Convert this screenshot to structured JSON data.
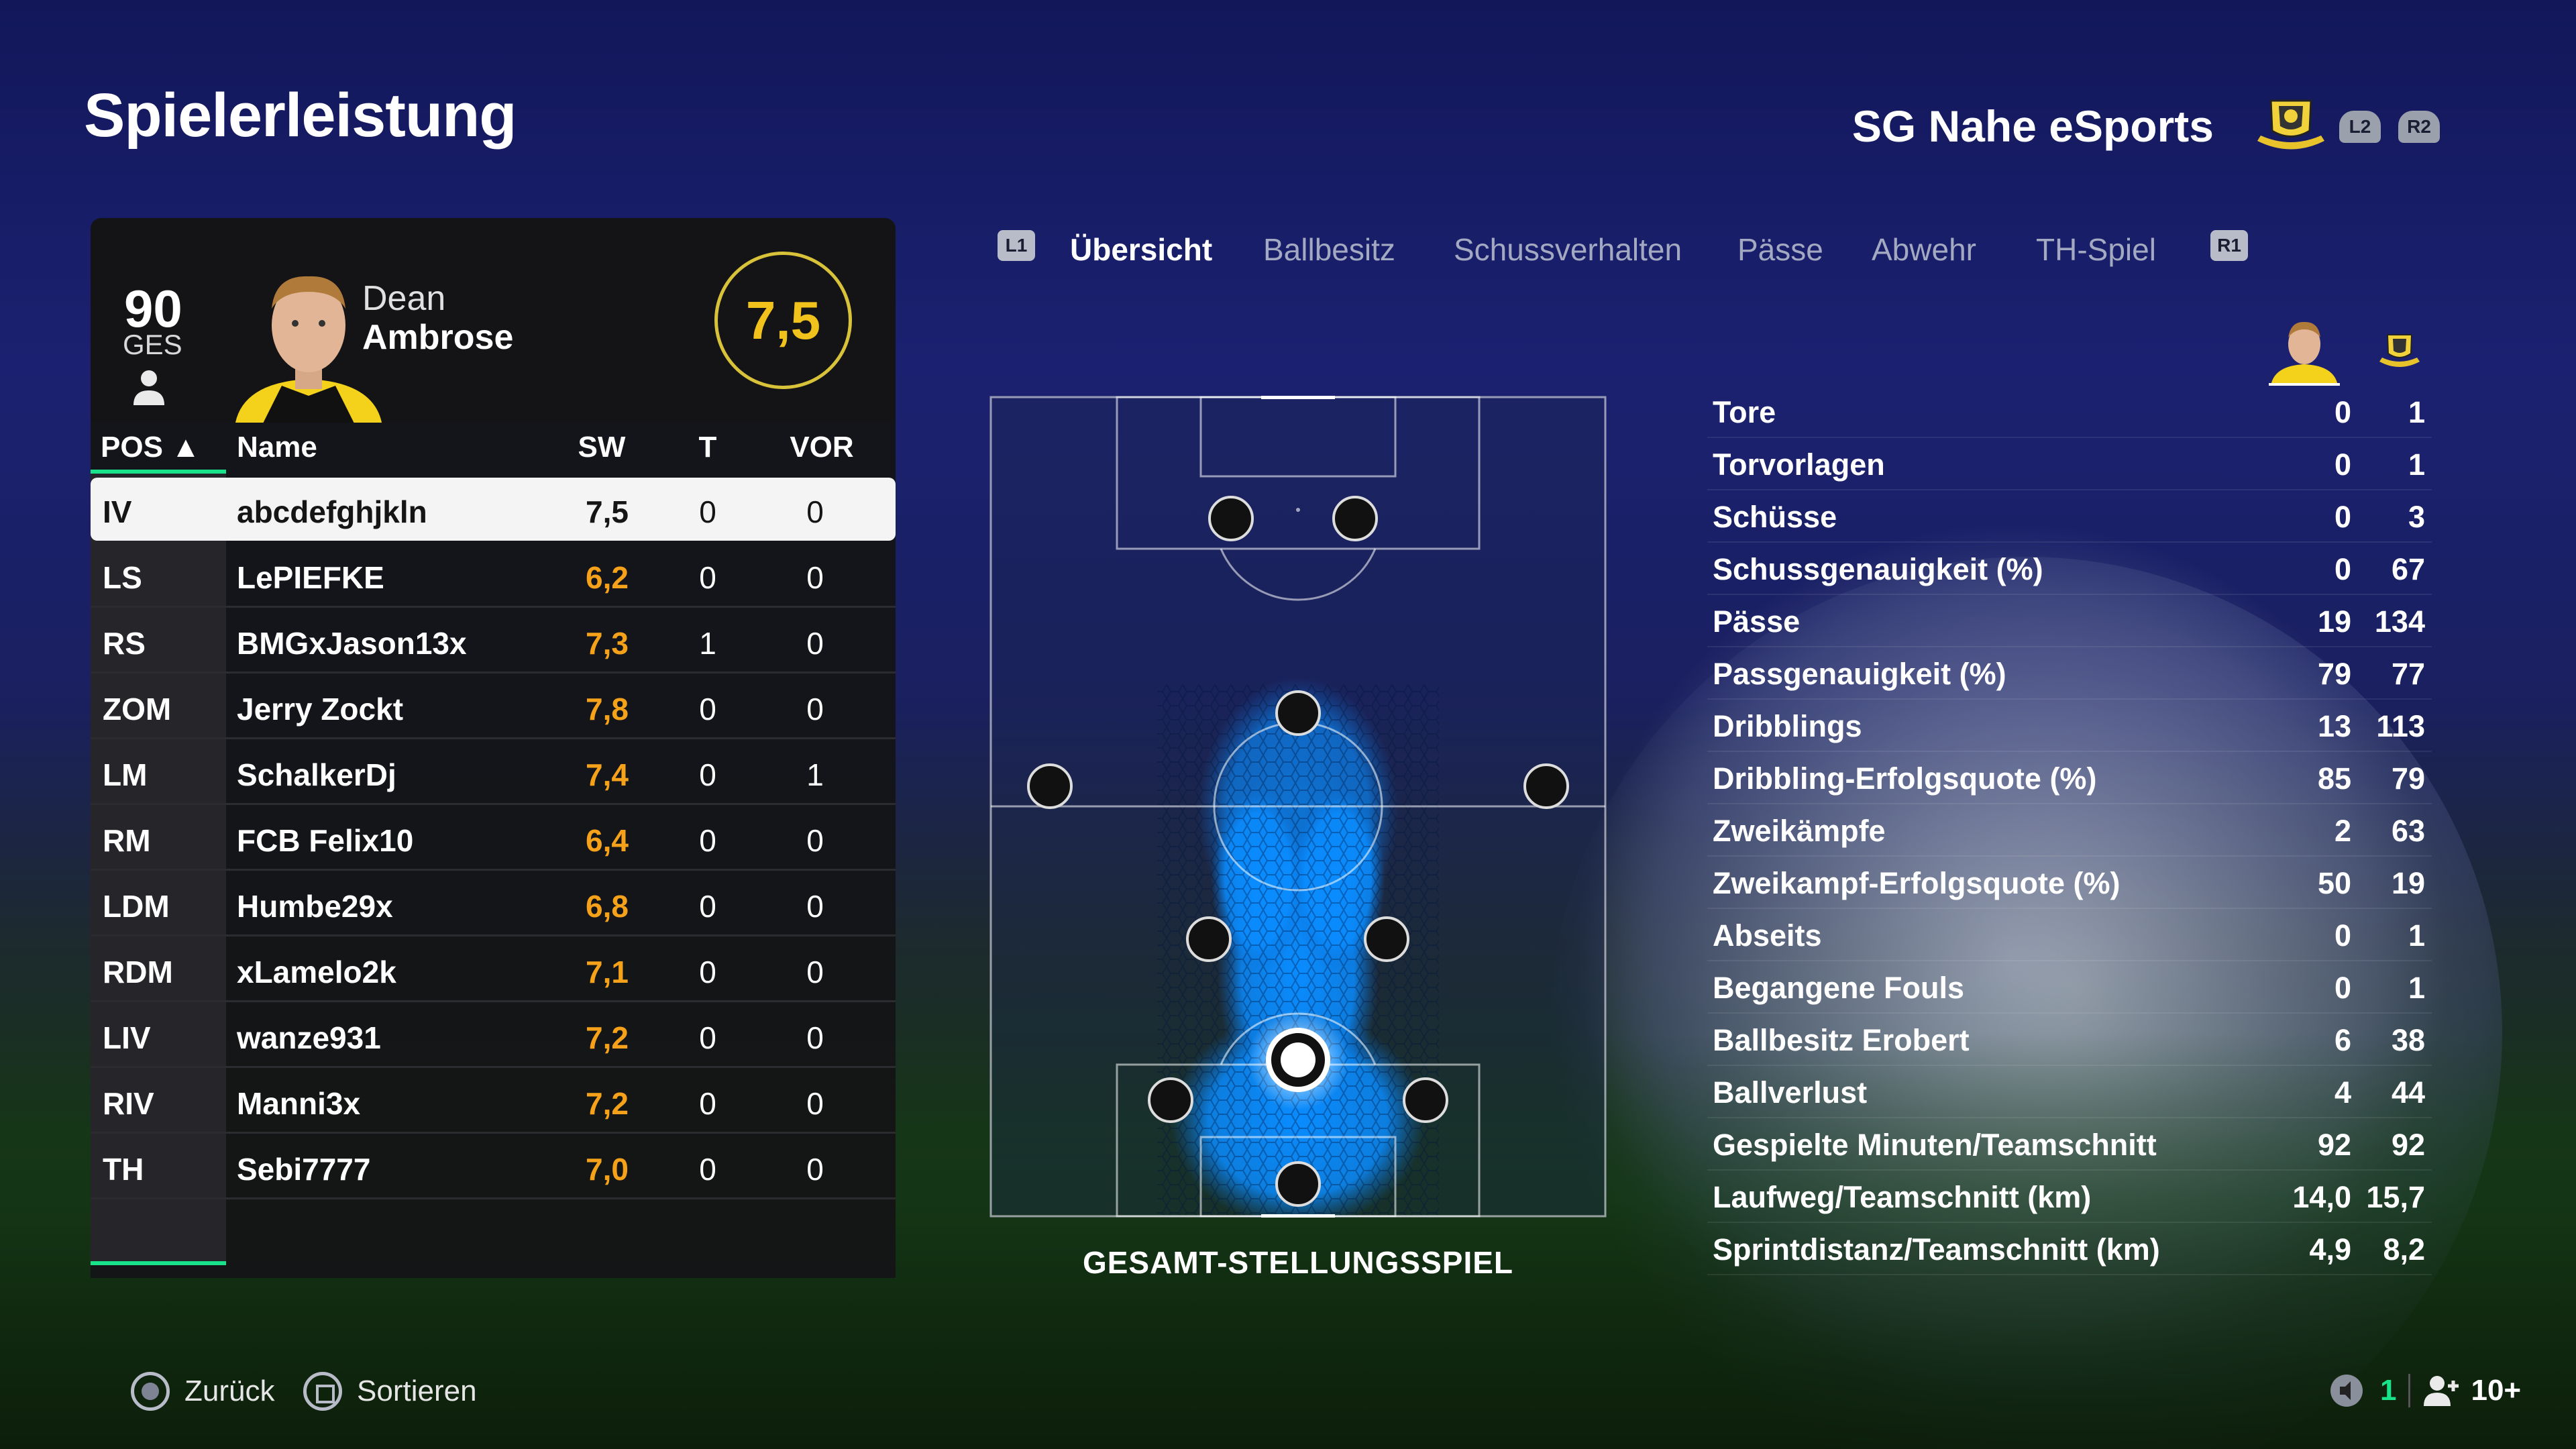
{
  "header": {
    "title": "Spielerleistung",
    "club": "SG Nahe eSports",
    "l2": "L2",
    "r2": "R2"
  },
  "player": {
    "overall": "90",
    "overall_label": "GES",
    "first_name": "Dean",
    "last_name": "Ambrose",
    "rating": "7,5"
  },
  "table": {
    "headers": {
      "pos": "POS ▲",
      "name": "Name",
      "sw": "SW",
      "t": "T",
      "vor": "VOR"
    },
    "rows": [
      {
        "pos": "IV",
        "name": "abcdefghjkln",
        "sw": "7,5",
        "t": "0",
        "vor": "0"
      },
      {
        "pos": "LS",
        "name": "LePIEFKE",
        "sw": "6,2",
        "t": "0",
        "vor": "0"
      },
      {
        "pos": "RS",
        "name": "BMGxJason13x",
        "sw": "7,3",
        "t": "1",
        "vor": "0"
      },
      {
        "pos": "ZOM",
        "name": "Jerry Zockt",
        "sw": "7,8",
        "t": "0",
        "vor": "0"
      },
      {
        "pos": "LM",
        "name": "SchalkerDj",
        "sw": "7,4",
        "t": "0",
        "vor": "1"
      },
      {
        "pos": "RM",
        "name": "FCB Felix10",
        "sw": "6,4",
        "t": "0",
        "vor": "0"
      },
      {
        "pos": "LDM",
        "name": "Humbe29x",
        "sw": "6,8",
        "t": "0",
        "vor": "0"
      },
      {
        "pos": "RDM",
        "name": "xLamelo2k",
        "sw": "7,1",
        "t": "0",
        "vor": "0"
      },
      {
        "pos": "LIV",
        "name": "wanze931",
        "sw": "7,2",
        "t": "0",
        "vor": "0"
      },
      {
        "pos": "RIV",
        "name": "Manni3x",
        "sw": "7,2",
        "t": "0",
        "vor": "0"
      },
      {
        "pos": "TH",
        "name": "Sebi7777",
        "sw": "7,0",
        "t": "0",
        "vor": "0"
      }
    ]
  },
  "tabs": {
    "l1": "L1",
    "r1": "R1",
    "items": [
      "Übersicht",
      "Ballbesitz",
      "Schussverhalten",
      "Pässe",
      "Abwehr",
      "TH-Spiel"
    ],
    "active": "Übersicht"
  },
  "pitch": {
    "caption": "GESAMT-STELLUNGSSPIEL"
  },
  "stats": [
    {
      "label": "Tore",
      "player": "0",
      "team": "1"
    },
    {
      "label": "Torvorlagen",
      "player": "0",
      "team": "1"
    },
    {
      "label": "Schüsse",
      "player": "0",
      "team": "3"
    },
    {
      "label": "Schussgenauigkeit (%)",
      "player": "0",
      "team": "67"
    },
    {
      "label": "Pässe",
      "player": "19",
      "team": "134"
    },
    {
      "label": "Passgenauigkeit (%)",
      "player": "79",
      "team": "77"
    },
    {
      "label": "Dribblings",
      "player": "13",
      "team": "113"
    },
    {
      "label": "Dribbling-Erfolgsquote (%)",
      "player": "85",
      "team": "79"
    },
    {
      "label": "Zweikämpfe",
      "player": "2",
      "team": "63"
    },
    {
      "label": "Zweikampf-Erfolgsquote (%)",
      "player": "50",
      "team": "19"
    },
    {
      "label": "Abseits",
      "player": "0",
      "team": "1"
    },
    {
      "label": "Begangene Fouls",
      "player": "0",
      "team": "1"
    },
    {
      "label": "Ballbesitz Erobert",
      "player": "6",
      "team": "38"
    },
    {
      "label": "Ballverlust",
      "player": "4",
      "team": "44"
    },
    {
      "label": "Gespielte Minuten/Teamschnitt",
      "player": "92",
      "team": "92"
    },
    {
      "label": "Laufweg/Teamschnitt (km)",
      "player": "14,0",
      "team": "15,7"
    },
    {
      "label": "Sprintdistanz/Teamschnitt (km)",
      "player": "4,9",
      "team": "8,2"
    }
  ],
  "footer": {
    "back": "Zurück",
    "sort": "Sortieren",
    "count": "1",
    "party": "10+"
  },
  "colors": {
    "accent_green": "#19e38a",
    "rating_orange": "#f5a21a",
    "heat_blue": "#0a8cff"
  }
}
